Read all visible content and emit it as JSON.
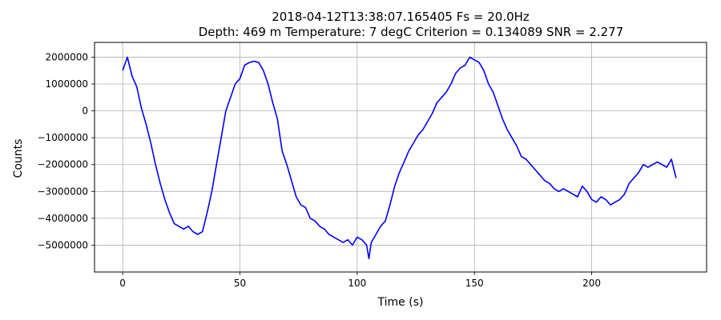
{
  "chart_data": {
    "type": "line",
    "title_line1": "2018-04-12T13:38:07.165405     Fs = 20.0Hz",
    "title_line2": "Depth: 469 m     Temperature: 7 degC     Criterion = 0.134089     SNR = 2.277",
    "xlabel": "Time (s)",
    "ylabel": "Counts",
    "xlim": [
      -12,
      249
    ],
    "ylim": [
      -6000000,
      2550000
    ],
    "xticks": [
      0,
      50,
      100,
      150,
      200
    ],
    "xtick_labels": [
      "0",
      "50",
      "100",
      "150",
      "200"
    ],
    "yticks": [
      2000000,
      1000000,
      0,
      -1000000,
      -2000000,
      -3000000,
      -4000000,
      -5000000
    ],
    "ytick_labels": [
      "2000000",
      "1000000",
      "0",
      "−1000000",
      "−2000000",
      "−3000000",
      "−4000000",
      "−5000000"
    ],
    "grid": true,
    "line_color": "#0000ff",
    "series": [
      {
        "x": [
          0,
          2,
          4,
          6,
          8,
          10,
          12,
          14,
          16,
          18,
          20,
          22,
          24,
          26,
          28,
          30,
          32,
          34,
          36,
          38,
          40,
          42,
          44,
          46,
          48,
          50,
          52,
          54,
          56,
          58,
          60,
          62,
          64,
          66,
          68,
          70,
          72,
          74,
          76,
          78,
          80,
          82,
          84,
          86,
          88,
          90,
          92,
          94,
          96,
          98,
          100,
          102,
          104,
          105,
          106,
          108,
          110,
          112,
          114,
          116,
          118,
          120,
          122,
          124,
          126,
          128,
          130,
          132,
          134,
          136,
          138,
          140,
          142,
          144,
          146,
          148,
          150,
          152,
          154,
          156,
          158,
          160,
          162,
          164,
          166,
          168,
          170,
          172,
          174,
          176,
          178,
          180,
          182,
          184,
          186,
          188,
          190,
          192,
          194,
          196,
          198,
          200,
          202,
          204,
          206,
          208,
          210,
          212,
          214,
          216,
          218,
          220,
          222,
          224,
          226,
          228,
          230,
          232,
          234,
          236
        ],
        "y": [
          1500000,
          2000000,
          1300000,
          900000,
          100000,
          -500000,
          -1200000,
          -2000000,
          -2700000,
          -3300000,
          -3800000,
          -4200000,
          -4300000,
          -4400000,
          -4300000,
          -4500000,
          -4600000,
          -4500000,
          -3800000,
          -3000000,
          -2000000,
          -1000000,
          0,
          500000,
          1000000,
          1200000,
          1700000,
          1800000,
          1850000,
          1800000,
          1500000,
          1000000,
          300000,
          -300000,
          -1500000,
          -2000000,
          -2600000,
          -3200000,
          -3500000,
          -3600000,
          -4000000,
          -4100000,
          -4300000,
          -4400000,
          -4600000,
          -4700000,
          -4800000,
          -4900000,
          -4800000,
          -5000000,
          -4700000,
          -4800000,
          -5000000,
          -5500000,
          -4900000,
          -4600000,
          -4300000,
          -4100000,
          -3500000,
          -2800000,
          -2300000,
          -1900000,
          -1500000,
          -1200000,
          -900000,
          -700000,
          -400000,
          -100000,
          300000,
          500000,
          700000,
          1000000,
          1400000,
          1600000,
          1700000,
          2000000,
          1900000,
          1800000,
          1500000,
          1000000,
          700000,
          200000,
          -300000,
          -700000,
          -1000000,
          -1300000,
          -1700000,
          -1800000,
          -2000000,
          -2200000,
          -2400000,
          -2600000,
          -2700000,
          -2900000,
          -3000000,
          -2900000,
          -3000000,
          -3100000,
          -3200000,
          -2800000,
          -3000000,
          -3300000,
          -3400000,
          -3200000,
          -3300000,
          -3500000,
          -3400000,
          -3300000,
          -3100000,
          -2700000,
          -2500000,
          -2300000,
          -2000000,
          -2100000,
          -2000000,
          -1900000,
          -2000000,
          -2100000,
          -1800000,
          -2500000
        ]
      }
    ]
  }
}
